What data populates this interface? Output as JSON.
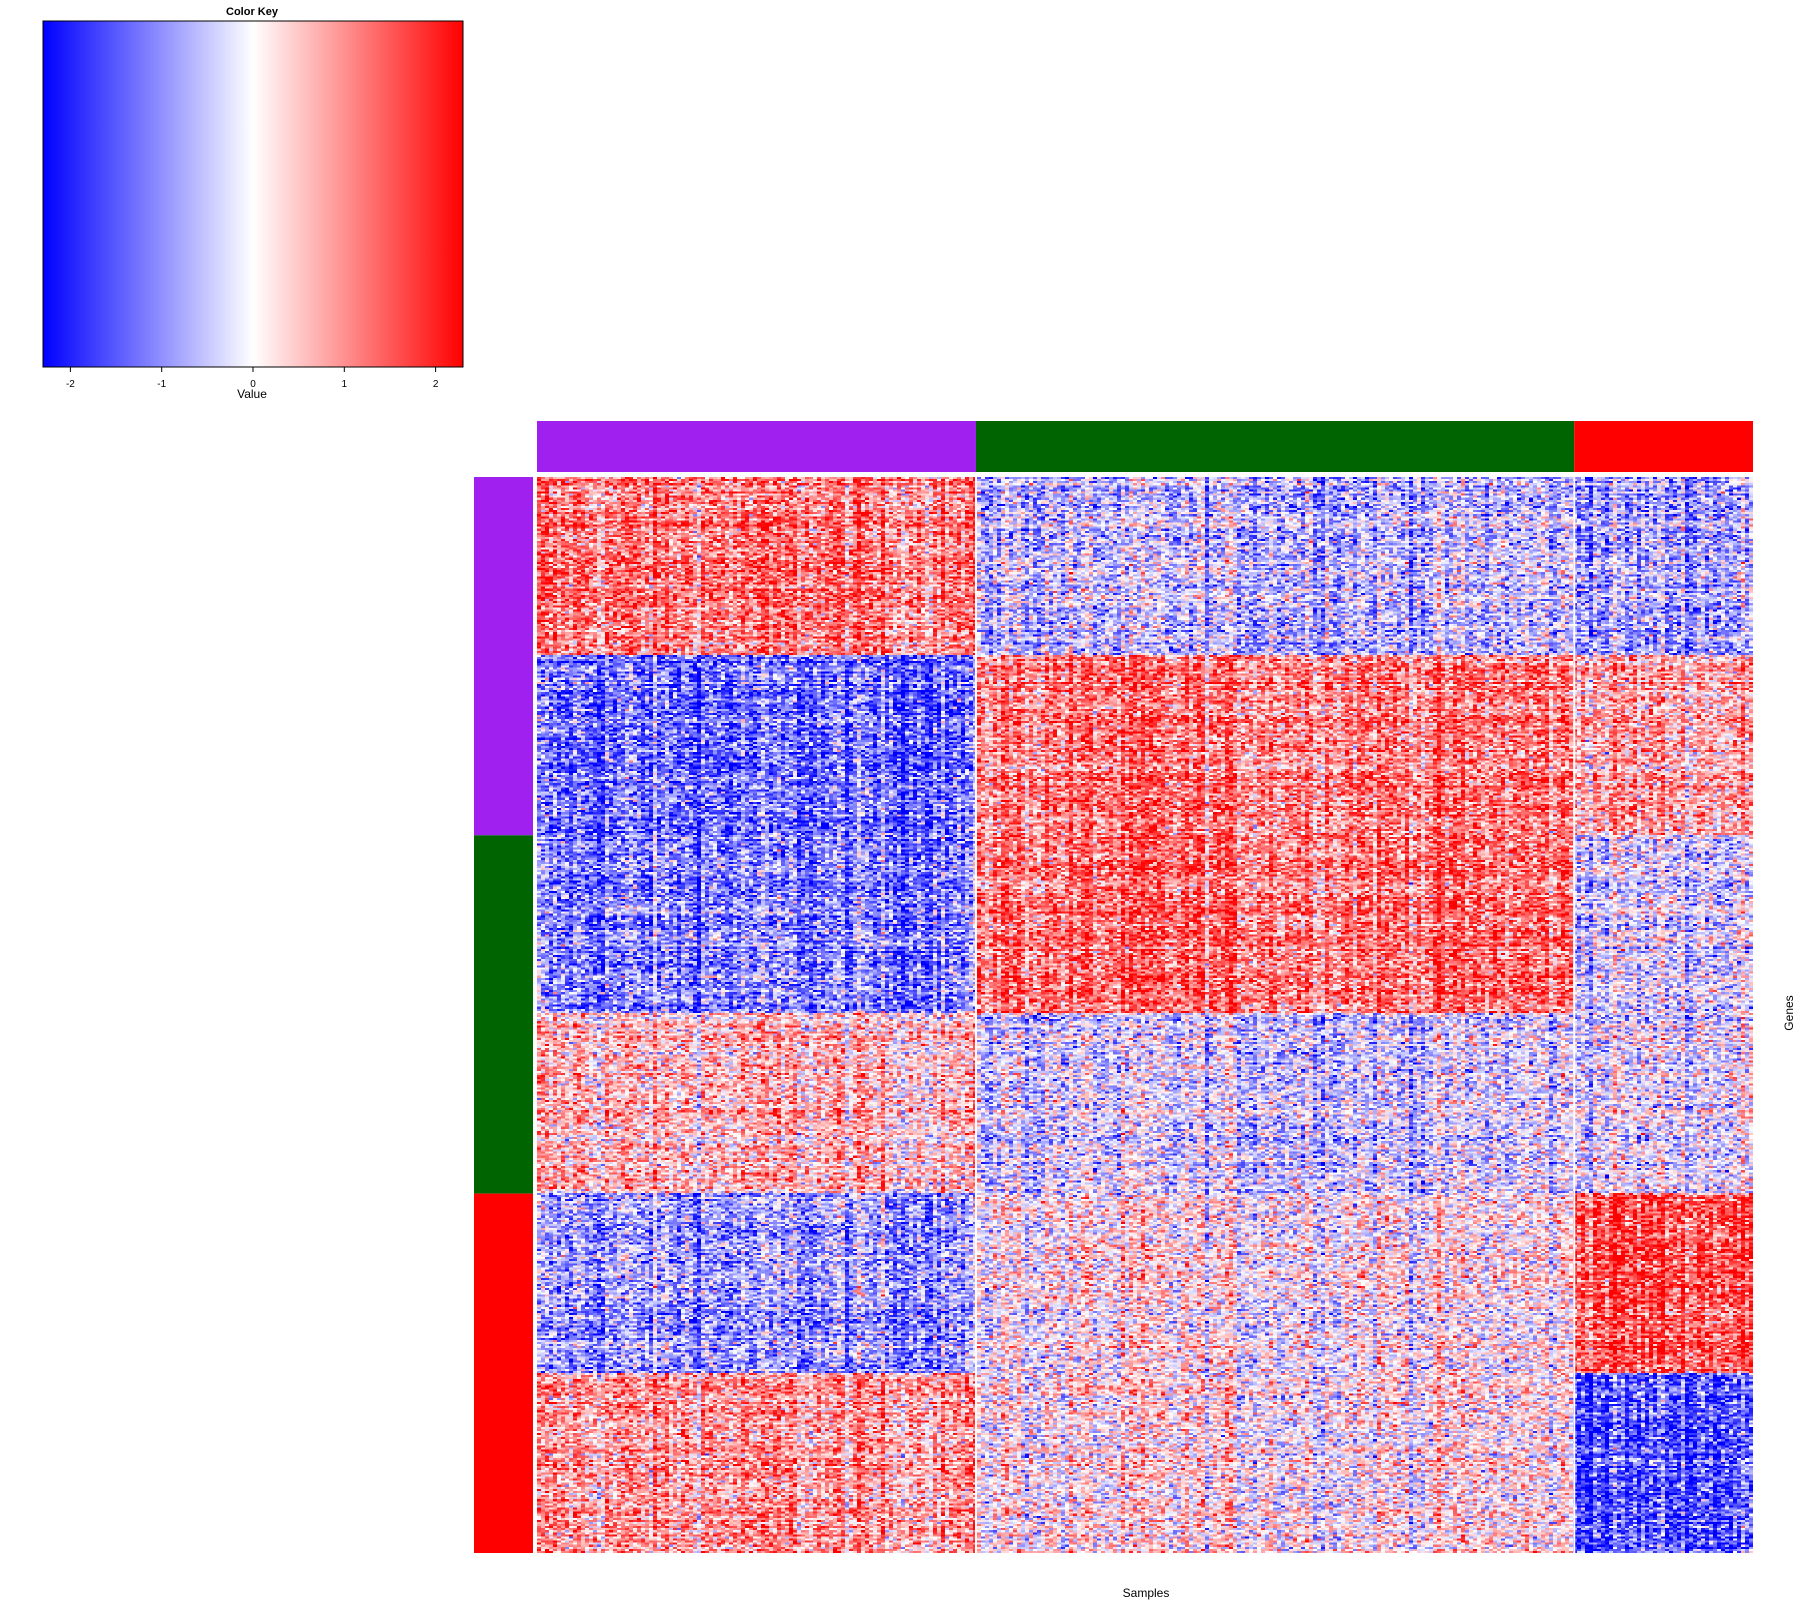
{
  "color_key": {
    "title": "Color Key",
    "xlabel": "Value",
    "ticks": [
      "-2",
      "-1",
      "0",
      "1",
      "2"
    ],
    "tick_values": [
      -2,
      -1,
      0,
      1,
      2
    ],
    "range": [
      -2.3,
      2.3
    ],
    "colors": {
      "low": "#0000ff",
      "mid": "#ffffff",
      "high": "#ff0000"
    }
  },
  "chart_data": {
    "type": "heatmap",
    "xlabel": "Samples",
    "ylabel": "Genes",
    "value_range": [
      -2.3,
      2.3
    ],
    "sample_groups": [
      {
        "color": "#a020f0",
        "fraction": 0.361
      },
      {
        "color": "#006400",
        "fraction": 0.492
      },
      {
        "color": "#ff0000",
        "fraction": 0.147
      }
    ],
    "gene_groups": [
      {
        "color": "#a020f0",
        "fraction": 0.333
      },
      {
        "color": "#006400",
        "fraction": 0.333
      },
      {
        "color": "#ff0000",
        "fraction": 0.334
      }
    ],
    "gene_blocks": [
      {
        "fraction": 0.166,
        "mean_values": [
          1.2,
          -0.5,
          -0.7
        ]
      },
      {
        "fraction": 0.167,
        "mean_values": [
          -1.3,
          1.2,
          0.8
        ]
      },
      {
        "fraction": 0.166,
        "mean_values": [
          -1.1,
          1.3,
          -0.3
        ]
      },
      {
        "fraction": 0.167,
        "mean_values": [
          0.5,
          -0.4,
          -0.2
        ]
      },
      {
        "fraction": 0.167,
        "mean_values": [
          -0.9,
          0.1,
          1.6
        ]
      },
      {
        "fraction": 0.167,
        "mean_values": [
          0.9,
          0.2,
          -1.5
        ]
      }
    ]
  }
}
